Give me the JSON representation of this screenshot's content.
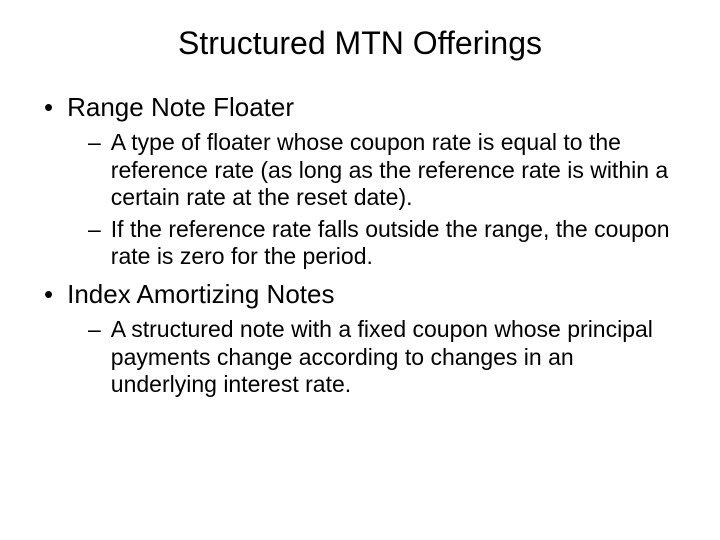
{
  "slide": {
    "title": "Structured MTN Offerings",
    "bullets": [
      {
        "label": "Range Note Floater",
        "sub": [
          "A type of floater whose coupon rate is equal to the reference rate (as long as the reference rate is within a certain rate at the reset date).",
          "If the reference rate falls outside the range, the coupon rate is zero for the period."
        ]
      },
      {
        "label": "Index Amortizing Notes",
        "sub": [
          "A structured note with a fixed coupon whose principal payments change according to changes in an underlying interest rate."
        ]
      }
    ]
  },
  "styling": {
    "background_color": "#ffffff",
    "text_color": "#000000",
    "title_fontsize": 32,
    "level1_fontsize": 26,
    "level2_fontsize": 23,
    "font_family": "Arial"
  }
}
